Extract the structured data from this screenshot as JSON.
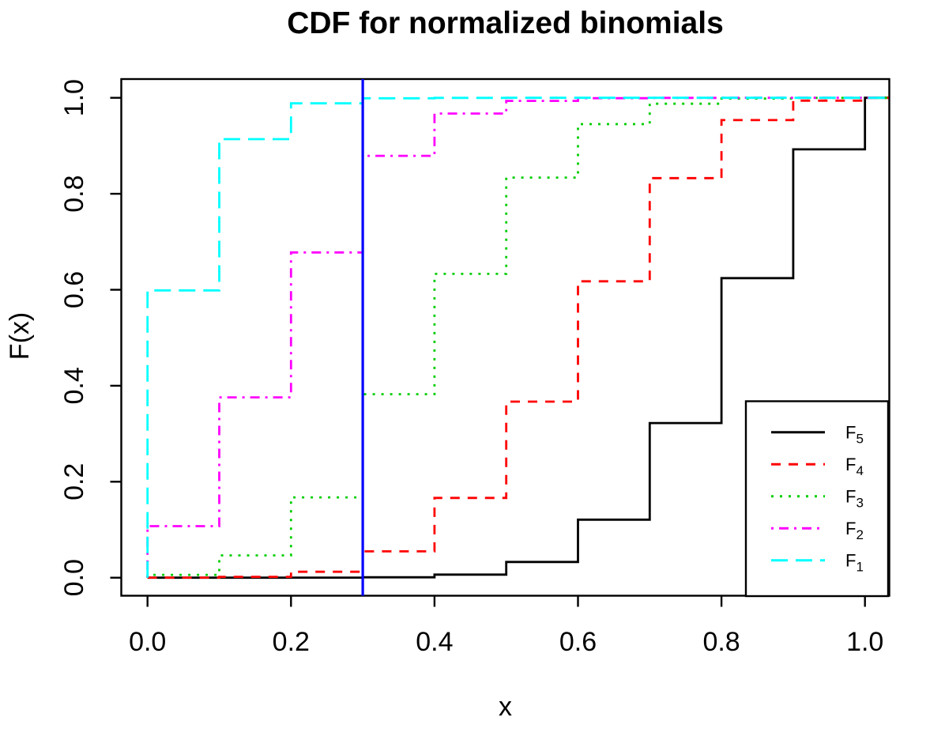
{
  "chart_data": {
    "type": "line",
    "subtype": "step-cdf",
    "title": "CDF for normalized binomials",
    "xlabel": "x",
    "ylabel": "F(x)",
    "xlim": [
      0,
      1
    ],
    "ylim": [
      0,
      1
    ],
    "grid": false,
    "x_ticks": {
      "values": [
        0.0,
        0.2,
        0.4,
        0.6,
        0.8,
        1.0
      ],
      "labels": [
        "0.0",
        "0.2",
        "0.4",
        "0.6",
        "0.8",
        "1.0"
      ]
    },
    "y_ticks": {
      "values": [
        0.0,
        0.2,
        0.4,
        0.6,
        0.8,
        1.0
      ],
      "labels": [
        "0.0",
        "0.2",
        "0.4",
        "0.6",
        "0.8",
        "1.0"
      ]
    },
    "x": [
      0,
      0.1,
      0.2,
      0.3,
      0.4,
      0.5,
      0.6,
      0.7,
      0.8,
      0.9,
      1.0
    ],
    "series": [
      {
        "name": "F5",
        "label_base": "F",
        "label_sub": "5",
        "color": "#000000",
        "linestyle": "solid",
        "values": [
          0.0,
          0.0,
          0.0001,
          0.0009,
          0.0064,
          0.0328,
          0.1209,
          0.3222,
          0.6242,
          0.8926,
          1.0
        ]
      },
      {
        "name": "F4",
        "label_base": "F",
        "label_sub": "4",
        "color": "#FF0000",
        "linestyle": "dashed",
        "values": [
          0.0001,
          0.0017,
          0.0123,
          0.0548,
          0.1662,
          0.3669,
          0.6177,
          0.8327,
          0.9536,
          0.994,
          1.0
        ]
      },
      {
        "name": "F3",
        "label_base": "F",
        "label_sub": "3",
        "color": "#00CD00",
        "linestyle": "dotted",
        "values": [
          0.006,
          0.0464,
          0.1673,
          0.3823,
          0.6331,
          0.8338,
          0.9452,
          0.9877,
          0.9983,
          0.9999,
          1.0
        ]
      },
      {
        "name": "F2",
        "label_base": "F",
        "label_sub": "2",
        "color": "#FF00FF",
        "linestyle": "dotdash",
        "values": [
          0.1074,
          0.3758,
          0.6778,
          0.8791,
          0.9672,
          0.9936,
          0.9991,
          0.9999,
          1.0,
          1.0,
          1.0
        ]
      },
      {
        "name": "F1",
        "label_base": "F",
        "label_sub": "1",
        "color": "#00FFFF",
        "linestyle": "longdash",
        "values": [
          0.5987,
          0.9139,
          0.9885,
          0.999,
          0.9999,
          1.0,
          1.0,
          1.0,
          1.0,
          1.0,
          1.0
        ]
      }
    ],
    "vline": {
      "x": 0.3,
      "color": "#0000FF"
    },
    "legend": {
      "position": "bottom-right",
      "entries": [
        "F5",
        "F4",
        "F3",
        "F2",
        "F1"
      ]
    },
    "axis_color": "#000000",
    "background_color": "#FFFFFF"
  }
}
